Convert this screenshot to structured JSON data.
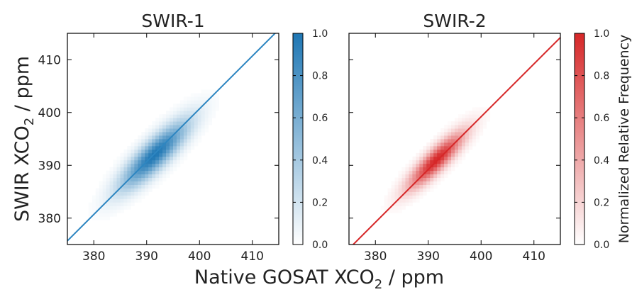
{
  "figure": {
    "xlabel_main": "Native GOSAT XCO",
    "xlabel_sub": "2",
    "xlabel_tail": " / ppm",
    "ylabel_main": "SWIR XCO",
    "ylabel_sub": "2",
    "ylabel_tail": " / ppm",
    "colorbar_label": "Normalized Relative Frequency"
  },
  "chart_data": [
    {
      "type": "heatmap",
      "title": "SWIR-1",
      "xlim": [
        375,
        415
      ],
      "ylim": [
        375,
        415
      ],
      "xticks": [
        380,
        390,
        400,
        410
      ],
      "yticks": [
        380,
        390,
        400,
        410
      ],
      "colormap": "Blues",
      "color": "#1f77b4",
      "line_color": "#2e86c1",
      "density": {
        "center": [
          391.5,
          392.0
        ],
        "sd_major": 6.0,
        "sd_minor": 1.7
      },
      "fit_line": {
        "slope": 1.0,
        "intercept": 0.7
      },
      "colorbar": {
        "range": [
          0.0,
          1.0
        ],
        "ticks": [
          "0.0",
          "0.2",
          "0.4",
          "0.6",
          "0.8",
          "1.0"
        ]
      }
    },
    {
      "type": "heatmap",
      "title": "SWIR-2",
      "xlim": [
        375,
        415
      ],
      "ylim": [
        375,
        415
      ],
      "xticks": [
        380,
        390,
        400,
        410
      ],
      "yticks": [
        380,
        390,
        400,
        410
      ],
      "colormap": "Reds",
      "color": "#d62728",
      "line_color": "#d62728",
      "density": {
        "center": [
          391.5,
          391.0
        ],
        "sd_major": 5.0,
        "sd_minor": 1.3
      },
      "fit_line": {
        "slope": 1.0,
        "intercept": -0.8
      },
      "colorbar": {
        "range": [
          0.0,
          1.0
        ],
        "ticks": [
          "0.0",
          "0.2",
          "0.4",
          "0.6",
          "0.8",
          "1.0"
        ]
      }
    }
  ]
}
